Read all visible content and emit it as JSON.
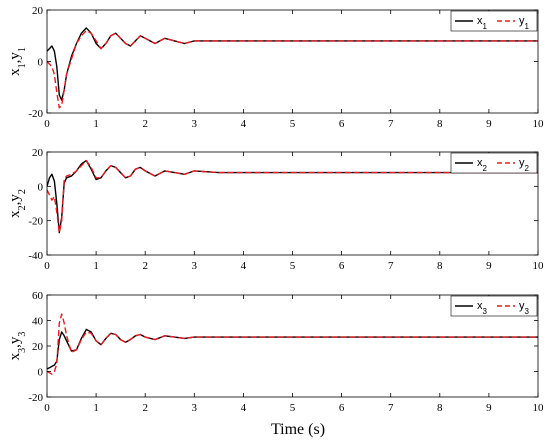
{
  "chart_data": [
    {
      "type": "line",
      "ylabel": {
        "main": "x",
        "sub1": "1",
        "sep": ",y",
        "sub2": "1"
      },
      "xlim": [
        0,
        10
      ],
      "ylim": [
        -20,
        20
      ],
      "xticks": [
        "0",
        "1",
        "2",
        "3",
        "4",
        "5",
        "6",
        "7",
        "8",
        "9",
        "10"
      ],
      "yticks": [
        "-20",
        "0",
        "20"
      ],
      "grid": false,
      "legend_position": "top-right",
      "x": [
        0,
        0.05,
        0.1,
        0.15,
        0.2,
        0.25,
        0.3,
        0.35,
        0.4,
        0.5,
        0.6,
        0.7,
        0.8,
        0.9,
        1.0,
        1.1,
        1.2,
        1.3,
        1.4,
        1.5,
        1.6,
        1.7,
        1.8,
        1.9,
        2.0,
        2.2,
        2.4,
        2.6,
        2.8,
        3.0,
        3.5,
        4.0,
        5.0,
        6.0,
        7.0,
        8.0,
        9.0,
        10.0
      ],
      "series": [
        {
          "name": "x",
          "sub": "1",
          "color": "#000000",
          "dash": "solid",
          "values": [
            4,
            5,
            6,
            4,
            -2,
            -13,
            -15,
            -11,
            -5,
            2,
            7,
            11,
            13,
            11,
            7,
            5,
            7,
            10,
            11,
            9,
            7,
            6,
            8,
            10,
            9,
            7,
            9,
            8,
            7,
            8,
            8,
            8,
            8,
            8,
            8,
            8,
            8,
            8
          ]
        },
        {
          "name": "y",
          "sub": "1",
          "color": "#e8191f",
          "dash": "dashed",
          "values": [
            0,
            -1,
            -2,
            -5,
            -12,
            -18,
            -17,
            -11,
            -5,
            1,
            7,
            10,
            12,
            11,
            8,
            5,
            7,
            10,
            11,
            9,
            7,
            6,
            8,
            10,
            9,
            7,
            9,
            8,
            7,
            8,
            8,
            8,
            8,
            8,
            8,
            8,
            8,
            8
          ]
        }
      ]
    },
    {
      "type": "line",
      "ylabel": {
        "main": "x",
        "sub1": "2",
        "sep": ",y",
        "sub2": "2"
      },
      "xlim": [
        0,
        10
      ],
      "ylim": [
        -40,
        20
      ],
      "xticks": [
        "0",
        "1",
        "2",
        "3",
        "4",
        "5",
        "6",
        "7",
        "8",
        "9",
        "10"
      ],
      "yticks": [
        "-40",
        "-20",
        "0",
        "20"
      ],
      "grid": false,
      "legend_position": "top-right",
      "x": [
        0,
        0.05,
        0.1,
        0.15,
        0.2,
        0.25,
        0.3,
        0.35,
        0.4,
        0.5,
        0.6,
        0.7,
        0.8,
        0.9,
        1.0,
        1.1,
        1.2,
        1.3,
        1.4,
        1.5,
        1.6,
        1.7,
        1.8,
        1.9,
        2.0,
        2.2,
        2.4,
        2.6,
        2.8,
        3.0,
        3.5,
        4.0,
        5.0,
        6.0,
        7.0,
        8.0,
        9.0,
        10.0
      ],
      "series": [
        {
          "name": "x",
          "sub": "2",
          "color": "#000000",
          "dash": "solid",
          "values": [
            0,
            5,
            7,
            3,
            -10,
            -27,
            -18,
            2,
            5,
            6,
            9,
            13,
            15,
            10,
            4,
            5,
            9,
            12,
            11,
            8,
            5,
            6,
            10,
            11,
            9,
            6,
            9,
            8,
            7,
            9,
            8,
            8,
            8,
            8,
            8,
            8,
            8,
            8
          ]
        },
        {
          "name": "y",
          "sub": "2",
          "color": "#e8191f",
          "dash": "dashed",
          "values": [
            -2,
            -5,
            -8,
            -6,
            -15,
            -27,
            -20,
            4,
            6,
            7,
            9,
            12,
            15,
            11,
            5,
            5,
            9,
            12,
            11,
            8,
            5,
            6,
            10,
            11,
            9,
            6,
            9,
            8,
            7,
            9,
            8,
            8,
            8,
            8,
            8,
            8,
            8,
            8
          ]
        }
      ]
    },
    {
      "type": "line",
      "ylabel": {
        "main": "x",
        "sub1": "3",
        "sep": ",y",
        "sub2": "3"
      },
      "xlim": [
        0,
        10
      ],
      "ylim": [
        -20,
        60
      ],
      "xticks": [
        "0",
        "1",
        "2",
        "3",
        "4",
        "5",
        "6",
        "7",
        "8",
        "9",
        "10"
      ],
      "yticks": [
        "-20",
        "0",
        "20",
        "40",
        "60"
      ],
      "grid": false,
      "legend_position": "top-right",
      "x": [
        0,
        0.05,
        0.1,
        0.15,
        0.2,
        0.25,
        0.3,
        0.35,
        0.4,
        0.5,
        0.6,
        0.7,
        0.8,
        0.9,
        1.0,
        1.1,
        1.2,
        1.3,
        1.4,
        1.5,
        1.6,
        1.7,
        1.8,
        1.9,
        2.0,
        2.2,
        2.4,
        2.6,
        2.8,
        3.0,
        3.5,
        4.0,
        5.0,
        6.0,
        7.0,
        8.0,
        9.0,
        10.0
      ],
      "series": [
        {
          "name": "x",
          "sub": "3",
          "color": "#000000",
          "dash": "solid",
          "values": [
            2,
            3,
            4,
            5,
            8,
            25,
            31,
            28,
            24,
            16,
            17,
            26,
            33,
            31,
            24,
            21,
            26,
            30,
            29,
            25,
            23,
            25,
            28,
            29,
            27,
            25,
            28,
            27,
            26,
            27,
            27,
            27,
            27,
            27,
            27,
            27,
            27,
            27
          ]
        },
        {
          "name": "y",
          "sub": "3",
          "color": "#e8191f",
          "dash": "dashed",
          "values": [
            0,
            -1,
            -2,
            0,
            6,
            38,
            45,
            38,
            28,
            15,
            17,
            25,
            31,
            30,
            24,
            21,
            26,
            30,
            29,
            25,
            23,
            25,
            28,
            29,
            27,
            25,
            28,
            27,
            26,
            27,
            27,
            27,
            27,
            27,
            27,
            27,
            27,
            27
          ]
        }
      ]
    }
  ],
  "xlabel": "Time (s)"
}
